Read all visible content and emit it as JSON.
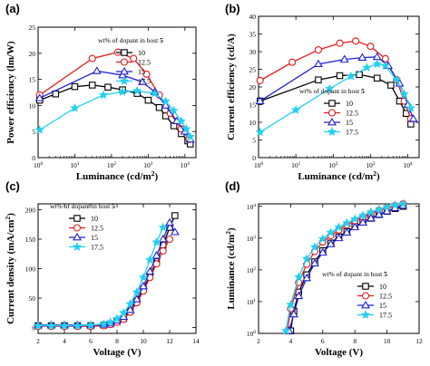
{
  "colors": [
    "#000000",
    "#e41a1c",
    "#1f1fd6",
    "#22d0f0"
  ],
  "markers": [
    "square",
    "circle",
    "triangle",
    "star"
  ],
  "chart_data": [
    {
      "panel": "(a)",
      "type": "line",
      "ylabel": "Power efficiency (lm/W)",
      "xlabel_main": "Luminance (cd/m",
      "xlabel_sup": "2",
      "xlabel_end": ")",
      "x_scale": "log",
      "xlim": [
        1,
        20000
      ],
      "ylim": [
        0,
        25
      ],
      "y_ticks": [
        0,
        5,
        10,
        15,
        20,
        25
      ],
      "x_ticks": [
        1,
        10,
        100,
        1000,
        10000
      ],
      "x_tick_labels": [
        {
          "b": "10",
          "e": "0"
        },
        {
          "b": "10",
          "e": "1"
        },
        {
          "b": "10",
          "e": "2"
        },
        {
          "b": "10",
          "e": "3"
        },
        {
          "b": "10",
          "e": "4"
        }
      ],
      "legend_title": "wt% of dopant in host 5",
      "legend_position": "top-right",
      "series": [
        {
          "name": "10",
          "points": [
            [
              1.1,
              11
            ],
            [
              3,
              12.2
            ],
            [
              10,
              13.6
            ],
            [
              30,
              13.9
            ],
            [
              80,
              13.5
            ],
            [
              200,
              13
            ],
            [
              500,
              12.3
            ],
            [
              1000,
              11
            ],
            [
              2000,
              9.6
            ],
            [
              3000,
              8
            ],
            [
              5000,
              6.1
            ],
            [
              8000,
              4.6
            ],
            [
              12000,
              3.2
            ],
            [
              14000,
              2.6
            ]
          ]
        },
        {
          "name": "12.5",
          "points": [
            [
              1.1,
              12
            ],
            [
              30,
              19
            ],
            [
              150,
              20.2
            ],
            [
              400,
              19
            ],
            [
              900,
              16
            ],
            [
              2000,
              12
            ],
            [
              4000,
              8.5
            ],
            [
              8000,
              5.5
            ],
            [
              13000,
              3.5
            ]
          ]
        },
        {
          "name": "15",
          "points": [
            [
              1.1,
              11.4
            ],
            [
              40,
              16.6
            ],
            [
              200,
              15.8
            ],
            [
              700,
              14.5
            ],
            [
              1500,
              12.6
            ],
            [
              3000,
              10
            ],
            [
              6000,
              7
            ],
            [
              10000,
              5
            ],
            [
              14000,
              3.5
            ]
          ]
        },
        {
          "name": "17.5",
          "points": [
            [
              1.1,
              5.3
            ],
            [
              10,
              9.5
            ],
            [
              60,
              12
            ],
            [
              200,
              12.6
            ],
            [
              500,
              12.8
            ],
            [
              1500,
              12.3
            ],
            [
              3000,
              10.8
            ],
            [
              5000,
              9
            ],
            [
              8000,
              7
            ],
            [
              11000,
              5.5
            ],
            [
              14000,
              4
            ]
          ]
        }
      ]
    },
    {
      "panel": "(b)",
      "type": "line",
      "ylabel": "Current efficiency (cd/A)",
      "xlabel_main": "Luminance (cd/m",
      "xlabel_sup": "2",
      "xlabel_end": ")",
      "x_scale": "log",
      "xlim": [
        1,
        20000
      ],
      "ylim": [
        0,
        40
      ],
      "y_ticks": [
        0,
        5,
        10,
        15,
        20,
        25,
        30,
        35,
        40
      ],
      "x_ticks": [
        1,
        10,
        100,
        1000,
        10000
      ],
      "x_tick_labels": [
        {
          "b": "10",
          "e": "0"
        },
        {
          "b": "10",
          "e": "1"
        },
        {
          "b": "10",
          "e": "2"
        },
        {
          "b": "10",
          "e": "3"
        },
        {
          "b": "10",
          "e": "4"
        }
      ],
      "legend_title": "wt% of dopant in host 5",
      "legend_position": "center",
      "series": [
        {
          "name": "10",
          "points": [
            [
              1.1,
              16
            ],
            [
              40,
              22
            ],
            [
              150,
              23.2
            ],
            [
              500,
              23.5
            ],
            [
              1500,
              22.5
            ],
            [
              3500,
              20.5
            ],
            [
              6000,
              16
            ],
            [
              9000,
              12.5
            ],
            [
              12000,
              9.5
            ]
          ]
        },
        {
          "name": "12.5",
          "points": [
            [
              1.1,
              21.8
            ],
            [
              8,
              27
            ],
            [
              40,
              30.5
            ],
            [
              150,
              32.4
            ],
            [
              400,
              33
            ],
            [
              1000,
              31.5
            ],
            [
              2500,
              28
            ],
            [
              5000,
              22
            ],
            [
              8000,
              16
            ],
            [
              12000,
              11
            ]
          ]
        },
        {
          "name": "15",
          "points": [
            [
              1.1,
              16
            ],
            [
              40,
              26.5
            ],
            [
              200,
              27.8
            ],
            [
              600,
              28.3
            ],
            [
              1500,
              28.5
            ],
            [
              3000,
              26
            ],
            [
              6000,
              21
            ],
            [
              10000,
              15
            ],
            [
              14000,
              11
            ]
          ]
        },
        {
          "name": "17.5",
          "points": [
            [
              1.1,
              7.2
            ],
            [
              10,
              13.5
            ],
            [
              80,
              19.5
            ],
            [
              300,
              23
            ],
            [
              800,
              25.5
            ],
            [
              1500,
              26.5
            ],
            [
              2500,
              26
            ],
            [
              5000,
              22
            ],
            [
              8000,
              18
            ],
            [
              12000,
              14
            ]
          ]
        }
      ]
    },
    {
      "panel": "(c)",
      "type": "line",
      "ylabel": "Current density (mA/cm",
      "ylabel_sup": "2",
      "ylabel_end": ")",
      "xlabel_main": "Voltage (V)",
      "x_scale": "linear",
      "xlim": [
        2,
        14
      ],
      "ylim": [
        -10,
        210
      ],
      "y_ticks": [
        0,
        50,
        100,
        150,
        200
      ],
      "x_ticks": [
        2,
        4,
        6,
        8,
        10,
        12,
        14
      ],
      "legend_title": "wt% of dopant in host 5",
      "legend_position": "top-left",
      "series": [
        {
          "name": "10",
          "points": [
            [
              2,
              3
            ],
            [
              3,
              3
            ],
            [
              4,
              3
            ],
            [
              5,
              3
            ],
            [
              6,
              3
            ],
            [
              7,
              4
            ],
            [
              7.5,
              6
            ],
            [
              8,
              10
            ],
            [
              8.5,
              15
            ],
            [
              9,
              28
            ],
            [
              9.5,
              45
            ],
            [
              10,
              65
            ],
            [
              10.5,
              88
            ],
            [
              11,
              112
            ],
            [
              11.5,
              140
            ],
            [
              12,
              170
            ],
            [
              12.4,
              190
            ]
          ]
        },
        {
          "name": "12.5",
          "points": [
            [
              2,
              2
            ],
            [
              3,
              2
            ],
            [
              4,
              2
            ],
            [
              5,
              2
            ],
            [
              6,
              2
            ],
            [
              7,
              3
            ],
            [
              7.5,
              5
            ],
            [
              8,
              9
            ],
            [
              8.5,
              14
            ],
            [
              9,
              26
            ],
            [
              9.5,
              42
            ],
            [
              10,
              62
            ],
            [
              10.5,
              85
            ],
            [
              11,
              108
            ],
            [
              11.5,
              130
            ],
            [
              12,
              150
            ]
          ]
        },
        {
          "name": "15",
          "points": [
            [
              2,
              4
            ],
            [
              3,
              4
            ],
            [
              4,
              4
            ],
            [
              5,
              4
            ],
            [
              6,
              4
            ],
            [
              7,
              5
            ],
            [
              7.5,
              7
            ],
            [
              8,
              12
            ],
            [
              8.5,
              18
            ],
            [
              9,
              30
            ],
            [
              9.5,
              48
            ],
            [
              10,
              70
            ],
            [
              10.5,
              95
            ],
            [
              11,
              122
            ],
            [
              11.5,
              150
            ],
            [
              12,
              178
            ],
            [
              12.4,
              162
            ]
          ]
        },
        {
          "name": "17.5",
          "points": [
            [
              2,
              3
            ],
            [
              3,
              3
            ],
            [
              4,
              3
            ],
            [
              5,
              3
            ],
            [
              6,
              4
            ],
            [
              7,
              6
            ],
            [
              7.5,
              9
            ],
            [
              8,
              15
            ],
            [
              8.5,
              25
            ],
            [
              9,
              40
            ],
            [
              9.5,
              60
            ],
            [
              10,
              85
            ],
            [
              10.5,
              115
            ],
            [
              11,
              145
            ],
            [
              11.5,
              170
            ]
          ]
        }
      ]
    },
    {
      "panel": "(d)",
      "type": "line",
      "ylabel": "Luminance (cd/m",
      "ylabel_sup": "2",
      "ylabel_end": ")",
      "xlabel_main": "Voltage (V)",
      "x_scale": "linear",
      "y_scale": "log",
      "xlim": [
        2,
        12
      ],
      "ylim": [
        1,
        12000
      ],
      "y_ticks": [
        1,
        10,
        100,
        1000,
        10000
      ],
      "y_tick_labels": [
        {
          "b": "10",
          "e": "0"
        },
        {
          "b": "10",
          "e": "1"
        },
        {
          "b": "10",
          "e": "2"
        },
        {
          "b": "10",
          "e": "3"
        },
        {
          "b": "10",
          "e": "4"
        }
      ],
      "x_ticks": [
        2,
        4,
        6,
        8,
        10,
        12
      ],
      "legend_title": "wt% of dopant in host 5",
      "legend_position": "bottom-right",
      "series": [
        {
          "name": "10",
          "points": [
            [
              4,
              1.2
            ],
            [
              4.2,
              5
            ],
            [
              4.5,
              20
            ],
            [
              5,
              70
            ],
            [
              5.5,
              180
            ],
            [
              6,
              400
            ],
            [
              6.5,
              700
            ],
            [
              7,
              1100
            ],
            [
              7.5,
              1600
            ],
            [
              8,
              2300
            ],
            [
              8.5,
              3200
            ],
            [
              9,
              4200
            ],
            [
              9.5,
              5500
            ],
            [
              10,
              7000
            ],
            [
              10.5,
              8500
            ],
            [
              11,
              10000
            ]
          ]
        },
        {
          "name": "12.5",
          "points": [
            [
              3.8,
              1.2
            ],
            [
              4,
              6
            ],
            [
              4.5,
              40
            ],
            [
              5,
              150
            ],
            [
              5.5,
              380
            ],
            [
              6,
              750
            ],
            [
              6.5,
              1200
            ],
            [
              7,
              1800
            ],
            [
              7.5,
              2600
            ],
            [
              8,
              3500
            ],
            [
              8.5,
              4600
            ],
            [
              9,
              6000
            ],
            [
              9.5,
              7500
            ],
            [
              10,
              9000
            ],
            [
              10.5,
              10500
            ],
            [
              11,
              12000
            ]
          ]
        },
        {
          "name": "15",
          "points": [
            [
              3.9,
              1.2
            ],
            [
              4.2,
              4
            ],
            [
              4.5,
              15
            ],
            [
              5,
              55
            ],
            [
              5.5,
              160
            ],
            [
              6,
              350
            ],
            [
              6.5,
              650
            ],
            [
              7,
              1000
            ],
            [
              7.5,
              1500
            ],
            [
              8,
              2200
            ],
            [
              8.5,
              3100
            ],
            [
              9,
              4200
            ],
            [
              9.5,
              5500
            ],
            [
              10,
              7000
            ],
            [
              10.5,
              8800
            ],
            [
              11,
              10500
            ]
          ]
        },
        {
          "name": "17.5",
          "points": [
            [
              3.7,
              1.2
            ],
            [
              4,
              8
            ],
            [
              4.5,
              60
            ],
            [
              5,
              220
            ],
            [
              5.5,
              520
            ],
            [
              6,
              950
            ],
            [
              6.5,
              1500
            ],
            [
              7,
              2200
            ],
            [
              7.5,
              3000
            ],
            [
              8,
              4000
            ],
            [
              8.5,
              5200
            ],
            [
              9,
              6600
            ],
            [
              9.5,
              8000
            ],
            [
              10,
              9500
            ],
            [
              10.5,
              11000
            ],
            [
              11,
              12000
            ]
          ]
        }
      ]
    }
  ]
}
